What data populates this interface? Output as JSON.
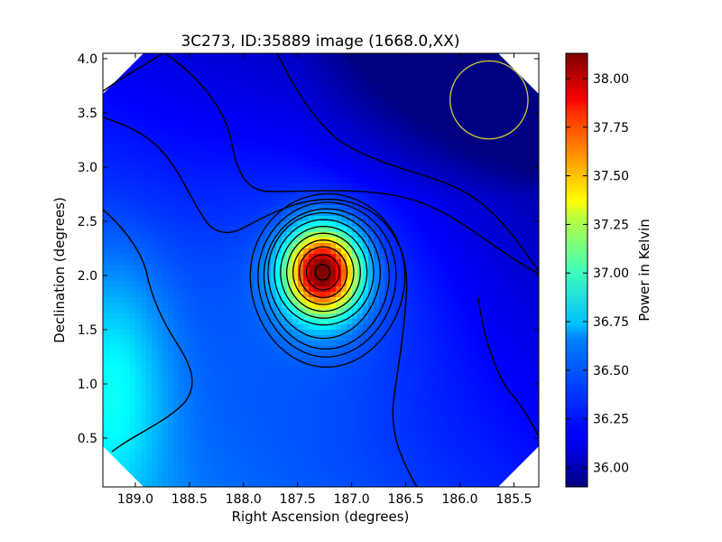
{
  "chart_data": {
    "type": "heatmap",
    "title": "3C273, ID:35889 image (1668.0,XX)",
    "xlabel": "Right Ascension (degrees)",
    "ylabel": "Declination (degrees)",
    "colorbar_label": "Power in Kelvin",
    "xlim": [
      189.3,
      185.27
    ],
    "ylim": [
      0.05,
      4.05
    ],
    "x_ticks": [
      189.0,
      188.5,
      188.0,
      187.5,
      187.0,
      186.5,
      186.0,
      185.5
    ],
    "x_tick_labels": [
      "189.0",
      "188.5",
      "188.0",
      "187.5",
      "187.0",
      "186.5",
      "186.0",
      "185.5"
    ],
    "y_ticks": [
      0.5,
      1.0,
      1.5,
      2.0,
      2.5,
      3.0,
      3.5,
      4.0
    ],
    "y_tick_labels": [
      "0.5",
      "1.0",
      "1.5",
      "2.0",
      "2.5",
      "3.0",
      "3.5",
      "4.0"
    ],
    "colorbar_range": [
      35.9,
      38.13
    ],
    "colorbar_ticks": [
      36.0,
      36.25,
      36.5,
      36.75,
      37.0,
      37.25,
      37.5,
      37.75,
      38.0
    ],
    "colorbar_tick_labels": [
      "36.00",
      "36.25",
      "36.50",
      "36.75",
      "37.00",
      "37.25",
      "37.50",
      "37.75",
      "38.00"
    ],
    "colormap": "jet",
    "source_peak": {
      "ra": 187.27,
      "dec": 2.03,
      "value": 38.1
    },
    "background_level": 36.2,
    "beam_circle": {
      "ra": 185.73,
      "dec": 3.62,
      "radius_deg": 0.36,
      "color": "#c8c83a"
    },
    "grid": false
  }
}
